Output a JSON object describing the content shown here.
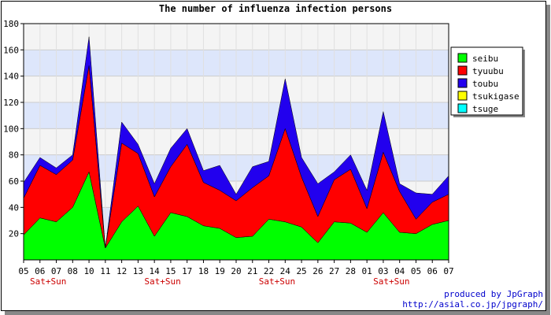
{
  "chart_data": {
    "type": "area",
    "stacked": true,
    "title": "The number of influenza infection persons",
    "categories": [
      "05",
      "06",
      "07",
      "08",
      "10",
      "11",
      "12",
      "13",
      "14",
      "15",
      "17",
      "18",
      "19",
      "20",
      "21",
      "22",
      "24",
      "25",
      "26",
      "27",
      "28",
      "01",
      "03",
      "04",
      "05",
      "06",
      "07"
    ],
    "weekend_labels": [
      {
        "category_index": 1.5,
        "text": "Sat+Sun"
      },
      {
        "category_index": 8.5,
        "text": "Sat+Sun"
      },
      {
        "category_index": 15.5,
        "text": "Sat+Sun"
      },
      {
        "category_index": 22.5,
        "text": "Sat+Sun"
      }
    ],
    "ylim": [
      0,
      180
    ],
    "yticks": [
      20,
      40,
      60,
      80,
      100,
      120,
      140,
      160,
      180
    ],
    "grid": true,
    "legend_position": "right",
    "series": [
      {
        "name": "seibu",
        "color": "#00ff00",
        "values": [
          19,
          32,
          29,
          40,
          67,
          9,
          29,
          41,
          18,
          36,
          33,
          26,
          24,
          17,
          18,
          31,
          29,
          25,
          13,
          29,
          28,
          21,
          36,
          21,
          20,
          27,
          30
        ]
      },
      {
        "name": "tyuubu",
        "color": "#ff0000",
        "values": [
          28,
          40,
          36,
          36,
          81,
          0,
          60,
          40,
          30,
          35,
          55,
          33,
          29,
          28,
          37,
          33,
          71,
          38,
          20,
          32,
          41,
          18,
          46,
          31,
          11,
          17,
          20
        ]
      },
      {
        "name": "toubu",
        "color": "#2200ee",
        "values": [
          12,
          6,
          5,
          4,
          22,
          0,
          16,
          7,
          10,
          14,
          12,
          9,
          19,
          5,
          16,
          11,
          38,
          15,
          25,
          6,
          11,
          14,
          31,
          6,
          20,
          6,
          14
        ]
      },
      {
        "name": "tsukigase",
        "color": "#ffff00",
        "values": [
          0,
          0,
          0,
          0,
          0,
          0,
          0,
          0,
          0,
          0,
          0,
          0,
          0,
          0,
          0,
          0,
          0,
          0,
          0,
          0,
          0,
          0,
          0,
          0,
          0,
          0,
          0
        ]
      },
      {
        "name": "tsuge",
        "color": "#00ffff",
        "values": [
          0,
          0,
          0,
          0,
          0,
          0,
          0,
          0,
          0,
          0,
          0,
          0,
          0,
          0,
          0,
          0,
          0,
          0,
          0,
          0,
          0,
          0,
          0,
          0,
          0,
          0,
          0
        ]
      }
    ]
  },
  "credits": {
    "line1": "produced by JpGraph",
    "line2": "http://asial.co.jp/jpgraph/"
  }
}
